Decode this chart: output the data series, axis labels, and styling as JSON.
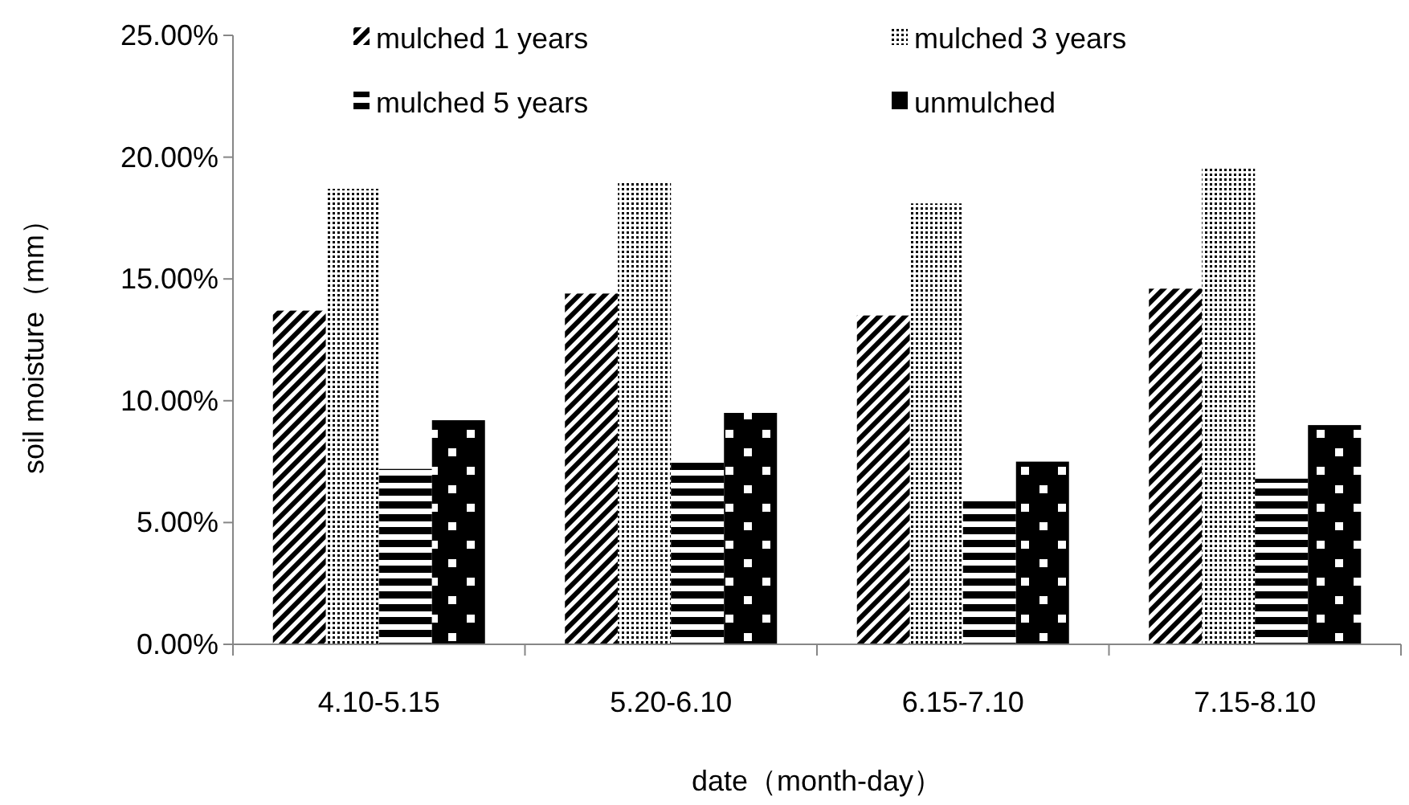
{
  "chart_data": {
    "type": "bar",
    "xlabel": "date（month-day）",
    "ylabel": "soil moisture（mm）",
    "categories": [
      "4.10-5.15",
      "5.20-6.10",
      "6.15-7.10",
      "7.15-8.10"
    ],
    "series": [
      {
        "name": "mulched 1 years",
        "color": "#000000",
        "values": [
          13.7,
          14.4,
          13.5,
          14.6
        ]
      },
      {
        "name": "mulched 3 years",
        "color": "#000000",
        "values": [
          18.7,
          19.0,
          18.1,
          19.6
        ]
      },
      {
        "name": "mulched 5 years",
        "color": "#000000",
        "values": [
          7.2,
          7.5,
          6.1,
          6.8
        ]
      },
      {
        "name": "unmulched",
        "color": "#000000",
        "values": [
          9.2,
          9.5,
          7.5,
          9.0
        ]
      }
    ],
    "ylim": [
      0,
      25
    ],
    "yticks": [
      {
        "value": 0,
        "label": "0.00%"
      },
      {
        "value": 5,
        "label": "5.00%"
      },
      {
        "value": 10,
        "label": "10.00%"
      },
      {
        "value": 15,
        "label": "15.00%"
      },
      {
        "value": 20,
        "label": "20.00%"
      },
      {
        "value": 25,
        "label": "25.00%"
      }
    ],
    "grid": false,
    "legend": "top"
  }
}
